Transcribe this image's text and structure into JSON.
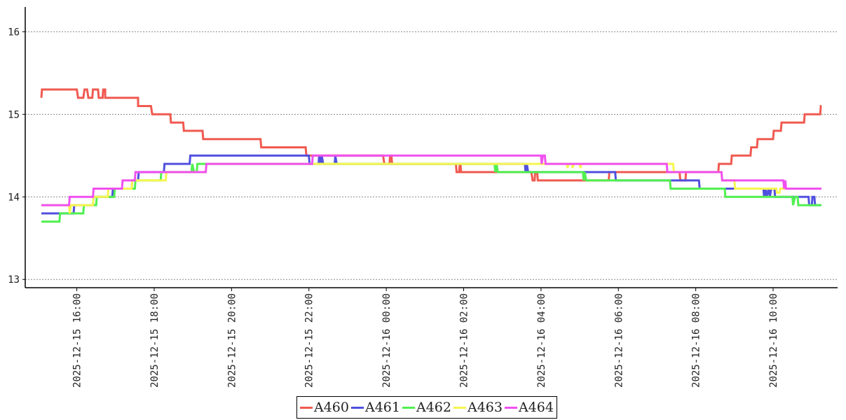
{
  "chart_data": {
    "type": "line",
    "title": "",
    "xlabel": "",
    "ylabel": "",
    "ylim": [
      12.9,
      16.3
    ],
    "xlim": [
      "2025-12-15 14:40",
      "2025-12-16 11:40"
    ],
    "yticks": [
      13,
      14,
      15,
      16
    ],
    "xticks": [
      "2025-12-15 16:00",
      "2025-12-15 18:00",
      "2025-12-15 20:00",
      "2025-12-15 22:00",
      "2025-12-16 00:00",
      "2025-12-16 02:00",
      "2025-12-16 04:00",
      "2025-12-16 06:00",
      "2025-12-16 08:00",
      "2025-12-16 10:00"
    ],
    "grid": "horizontal dotted",
    "legend_position": "bottom-center",
    "series": [
      {
        "name": "A460",
        "color": "#f05a50",
        "points": [
          [
            "2025-12-15 15:05",
            15.2
          ],
          [
            "2025-12-15 15:06",
            15.3
          ],
          [
            "2025-12-15 16:00",
            15.3
          ],
          [
            "2025-12-15 16:02",
            15.2
          ],
          [
            "2025-12-15 16:10",
            15.2
          ],
          [
            "2025-12-15 16:12",
            15.3
          ],
          [
            "2025-12-15 16:16",
            15.3
          ],
          [
            "2025-12-15 16:18",
            15.2
          ],
          [
            "2025-12-15 16:24",
            15.2
          ],
          [
            "2025-12-15 16:25",
            15.3
          ],
          [
            "2025-12-15 16:33",
            15.3
          ],
          [
            "2025-12-15 16:34",
            15.2
          ],
          [
            "2025-12-15 16:40",
            15.2
          ],
          [
            "2025-12-15 16:41",
            15.3
          ],
          [
            "2025-12-15 16:44",
            15.3
          ],
          [
            "2025-12-15 16:44",
            15.2
          ],
          [
            "2025-12-15 17:35",
            15.2
          ],
          [
            "2025-12-15 17:35",
            15.1
          ],
          [
            "2025-12-15 17:55",
            15.1
          ],
          [
            "2025-12-15 17:57",
            15.0
          ],
          [
            "2025-12-15 18:25",
            15.0
          ],
          [
            "2025-12-15 18:26",
            14.9
          ],
          [
            "2025-12-15 18:45",
            14.9
          ],
          [
            "2025-12-15 18:46",
            14.8
          ],
          [
            "2025-12-15 19:15",
            14.8
          ],
          [
            "2025-12-15 19:16",
            14.7
          ],
          [
            "2025-12-15 20:45",
            14.7
          ],
          [
            "2025-12-15 20:46",
            14.6
          ],
          [
            "2025-12-15 21:55",
            14.6
          ],
          [
            "2025-12-15 21:56",
            14.5
          ],
          [
            "2025-12-15 23:55",
            14.5
          ],
          [
            "2025-12-15 23:57",
            14.4
          ],
          [
            "2025-12-16 00:05",
            14.4
          ],
          [
            "2025-12-16 00:06",
            14.5
          ],
          [
            "2025-12-16 00:08",
            14.5
          ],
          [
            "2025-12-16 00:09",
            14.4
          ],
          [
            "2025-12-16 01:48",
            14.4
          ],
          [
            "2025-12-16 01:49",
            14.3
          ],
          [
            "2025-12-16 01:53",
            14.3
          ],
          [
            "2025-12-16 01:54",
            14.4
          ],
          [
            "2025-12-16 01:55",
            14.4
          ],
          [
            "2025-12-16 01:56",
            14.3
          ],
          [
            "2025-12-16 03:45",
            14.3
          ],
          [
            "2025-12-16 03:47",
            14.2
          ],
          [
            "2025-12-16 03:50",
            14.2
          ],
          [
            "2025-12-16 03:51",
            14.3
          ],
          [
            "2025-12-16 03:54",
            14.3
          ],
          [
            "2025-12-16 03:55",
            14.2
          ],
          [
            "2025-12-16 05:45",
            14.2
          ],
          [
            "2025-12-16 05:46",
            14.3
          ],
          [
            "2025-12-16 07:35",
            14.3
          ],
          [
            "2025-12-16 07:36",
            14.2
          ],
          [
            "2025-12-16 07:44",
            14.2
          ],
          [
            "2025-12-16 07:45",
            14.3
          ],
          [
            "2025-12-16 08:35",
            14.3
          ],
          [
            "2025-12-16 08:36",
            14.4
          ],
          [
            "2025-12-16 08:55",
            14.4
          ],
          [
            "2025-12-16 08:56",
            14.5
          ],
          [
            "2025-12-16 09:25",
            14.5
          ],
          [
            "2025-12-16 09:26",
            14.6
          ],
          [
            "2025-12-16 09:35",
            14.6
          ],
          [
            "2025-12-16 09:36",
            14.7
          ],
          [
            "2025-12-16 10:00",
            14.7
          ],
          [
            "2025-12-16 10:01",
            14.8
          ],
          [
            "2025-12-16 10:12",
            14.8
          ],
          [
            "2025-12-16 10:13",
            14.9
          ],
          [
            "2025-12-16 10:48",
            14.9
          ],
          [
            "2025-12-16 10:49",
            15.0
          ],
          [
            "2025-12-16 11:13",
            15.0
          ],
          [
            "2025-12-16 11:14",
            15.1
          ],
          [
            "2025-12-16 11:15",
            15.1
          ]
        ]
      },
      {
        "name": "A461",
        "color": "#5050e0",
        "points": [
          [
            "2025-12-15 15:05",
            13.8
          ],
          [
            "2025-12-15 15:55",
            13.8
          ],
          [
            "2025-12-15 15:56",
            13.9
          ],
          [
            "2025-12-15 16:25",
            13.9
          ],
          [
            "2025-12-15 16:26",
            14.0
          ],
          [
            "2025-12-15 16:55",
            14.0
          ],
          [
            "2025-12-15 16:56",
            14.1
          ],
          [
            "2025-12-15 17:25",
            14.1
          ],
          [
            "2025-12-15 17:26",
            14.2
          ],
          [
            "2025-12-15 17:35",
            14.2
          ],
          [
            "2025-12-15 17:36",
            14.3
          ],
          [
            "2025-12-15 18:15",
            14.3
          ],
          [
            "2025-12-15 18:16",
            14.4
          ],
          [
            "2025-12-15 18:55",
            14.4
          ],
          [
            "2025-12-15 18:56",
            14.5
          ],
          [
            "2025-12-15 22:00",
            14.5
          ],
          [
            "2025-12-15 22:01",
            14.4
          ],
          [
            "2025-12-15 22:15",
            14.4
          ],
          [
            "2025-12-15 22:16",
            14.5
          ],
          [
            "2025-12-15 22:18",
            14.4
          ],
          [
            "2025-12-15 22:20",
            14.5
          ],
          [
            "2025-12-15 22:22",
            14.4
          ],
          [
            "2025-12-15 22:40",
            14.4
          ],
          [
            "2025-12-15 22:41",
            14.5
          ],
          [
            "2025-12-15 22:43",
            14.4
          ],
          [
            "2025-12-16 03:35",
            14.4
          ],
          [
            "2025-12-16 03:36",
            14.3
          ],
          [
            "2025-12-16 03:38",
            14.4
          ],
          [
            "2025-12-16 03:40",
            14.3
          ],
          [
            "2025-12-16 05:55",
            14.3
          ],
          [
            "2025-12-16 05:56",
            14.2
          ],
          [
            "2025-12-16 08:05",
            14.2
          ],
          [
            "2025-12-16 08:06",
            14.1
          ],
          [
            "2025-12-16 09:45",
            14.1
          ],
          [
            "2025-12-16 09:46",
            14.0
          ],
          [
            "2025-12-16 09:48",
            14.1
          ],
          [
            "2025-12-16 09:50",
            14.0
          ],
          [
            "2025-12-16 09:53",
            14.1
          ],
          [
            "2025-12-16 09:55",
            14.0
          ],
          [
            "2025-12-16 09:57",
            14.1
          ],
          [
            "2025-12-16 10:02",
            14.1
          ],
          [
            "2025-12-16 10:03",
            14.0
          ],
          [
            "2025-12-16 10:55",
            14.0
          ],
          [
            "2025-12-16 10:56",
            13.9
          ],
          [
            "2025-12-16 11:00",
            13.9
          ],
          [
            "2025-12-16 11:01",
            14.0
          ],
          [
            "2025-12-16 11:04",
            14.0
          ],
          [
            "2025-12-16 11:05",
            13.9
          ],
          [
            "2025-12-16 11:15",
            13.9
          ]
        ]
      },
      {
        "name": "A462",
        "color": "#50f050",
        "points": [
          [
            "2025-12-15 15:05",
            13.7
          ],
          [
            "2025-12-15 15:33",
            13.7
          ],
          [
            "2025-12-15 15:34",
            13.8
          ],
          [
            "2025-12-15 16:10",
            13.8
          ],
          [
            "2025-12-15 16:11",
            13.9
          ],
          [
            "2025-12-15 16:30",
            13.9
          ],
          [
            "2025-12-15 16:31",
            14.0
          ],
          [
            "2025-12-15 16:58",
            14.0
          ],
          [
            "2025-12-15 16:59",
            14.1
          ],
          [
            "2025-12-15 17:30",
            14.1
          ],
          [
            "2025-12-15 17:31",
            14.2
          ],
          [
            "2025-12-15 18:10",
            14.2
          ],
          [
            "2025-12-15 18:11",
            14.3
          ],
          [
            "2025-12-15 18:58",
            14.3
          ],
          [
            "2025-12-15 18:59",
            14.4
          ],
          [
            "2025-12-15 19:02",
            14.3
          ],
          [
            "2025-12-15 19:06",
            14.3
          ],
          [
            "2025-12-15 19:07",
            14.4
          ],
          [
            "2025-12-16 02:48",
            14.4
          ],
          [
            "2025-12-16 02:49",
            14.3
          ],
          [
            "2025-12-16 02:51",
            14.4
          ],
          [
            "2025-12-16 02:53",
            14.3
          ],
          [
            "2025-12-16 05:05",
            14.3
          ],
          [
            "2025-12-16 05:06",
            14.2
          ],
          [
            "2025-12-16 05:08",
            14.3
          ],
          [
            "2025-12-16 05:10",
            14.2
          ],
          [
            "2025-12-16 07:20",
            14.2
          ],
          [
            "2025-12-16 07:21",
            14.1
          ],
          [
            "2025-12-16 08:45",
            14.1
          ],
          [
            "2025-12-16 08:46",
            14.0
          ],
          [
            "2025-12-16 10:30",
            14.0
          ],
          [
            "2025-12-16 10:31",
            13.9
          ],
          [
            "2025-12-16 10:34",
            14.0
          ],
          [
            "2025-12-16 10:38",
            14.0
          ],
          [
            "2025-12-16 10:39",
            13.9
          ],
          [
            "2025-12-16 11:15",
            13.9
          ]
        ]
      },
      {
        "name": "A463",
        "color": "#f6f650",
        "points": [
          [
            "2025-12-15 15:05",
            13.9
          ],
          [
            "2025-12-15 15:48",
            13.9
          ],
          [
            "2025-12-15 15:49",
            13.8
          ],
          [
            "2025-12-15 15:51",
            13.9
          ],
          [
            "2025-12-15 16:25",
            13.9
          ],
          [
            "2025-12-15 16:26",
            14.0
          ],
          [
            "2025-12-15 16:48",
            14.0
          ],
          [
            "2025-12-15 16:49",
            14.1
          ],
          [
            "2025-12-15 17:25",
            14.1
          ],
          [
            "2025-12-15 17:26",
            14.2
          ],
          [
            "2025-12-15 18:18",
            14.2
          ],
          [
            "2025-12-15 18:19",
            14.3
          ],
          [
            "2025-12-15 19:20",
            14.3
          ],
          [
            "2025-12-15 19:21",
            14.4
          ],
          [
            "2025-12-16 03:50",
            14.4
          ],
          [
            "2025-12-16 04:40",
            14.4
          ],
          [
            "2025-12-16 04:41",
            14.35
          ],
          [
            "2025-12-16 04:43",
            14.4
          ],
          [
            "2025-12-16 04:48",
            14.4
          ],
          [
            "2025-12-16 04:49",
            14.35
          ],
          [
            "2025-12-16 04:51",
            14.4
          ],
          [
            "2025-12-16 05:00",
            14.4
          ],
          [
            "2025-12-16 05:01",
            14.35
          ],
          [
            "2025-12-16 05:03",
            14.4
          ],
          [
            "2025-12-16 07:25",
            14.4
          ],
          [
            "2025-12-16 07:26",
            14.3
          ],
          [
            "2025-12-16 08:40",
            14.3
          ],
          [
            "2025-12-16 08:41",
            14.2
          ],
          [
            "2025-12-16 09:00",
            14.2
          ],
          [
            "2025-12-16 09:01",
            14.1
          ],
          [
            "2025-12-16 10:05",
            14.1
          ],
          [
            "2025-12-16 10:06",
            14.05
          ],
          [
            "2025-12-16 10:10",
            14.05
          ],
          [
            "2025-12-16 10:11",
            14.1
          ],
          [
            "2025-12-16 11:15",
            14.1
          ]
        ]
      },
      {
        "name": "A464",
        "color": "#f050f0",
        "points": [
          [
            "2025-12-15 15:05",
            13.9
          ],
          [
            "2025-12-15 15:48",
            13.9
          ],
          [
            "2025-12-15 15:49",
            14.0
          ],
          [
            "2025-12-15 16:25",
            14.0
          ],
          [
            "2025-12-15 16:26",
            14.1
          ],
          [
            "2025-12-15 17:10",
            14.1
          ],
          [
            "2025-12-15 17:11",
            14.2
          ],
          [
            "2025-12-15 17:30",
            14.2
          ],
          [
            "2025-12-15 17:31",
            14.3
          ],
          [
            "2025-12-15 19:20",
            14.3
          ],
          [
            "2025-12-15 19:21",
            14.4
          ],
          [
            "2025-12-15 22:05",
            14.4
          ],
          [
            "2025-12-15 22:06",
            14.5
          ],
          [
            "2025-12-16 04:00",
            14.5
          ],
          [
            "2025-12-16 04:01",
            14.4
          ],
          [
            "2025-12-16 04:03",
            14.5
          ],
          [
            "2025-12-16 04:06",
            14.5
          ],
          [
            "2025-12-16 04:07",
            14.4
          ],
          [
            "2025-12-16 07:15",
            14.4
          ],
          [
            "2025-12-16 07:16",
            14.3
          ],
          [
            "2025-12-16 08:40",
            14.3
          ],
          [
            "2025-12-16 08:41",
            14.2
          ],
          [
            "2025-12-16 10:16",
            14.2
          ],
          [
            "2025-12-16 10:17",
            14.1
          ],
          [
            "2025-12-16 10:19",
            14.2
          ],
          [
            "2025-12-16 10:20",
            14.1
          ],
          [
            "2025-12-16 11:15",
            14.1
          ]
        ]
      }
    ]
  }
}
